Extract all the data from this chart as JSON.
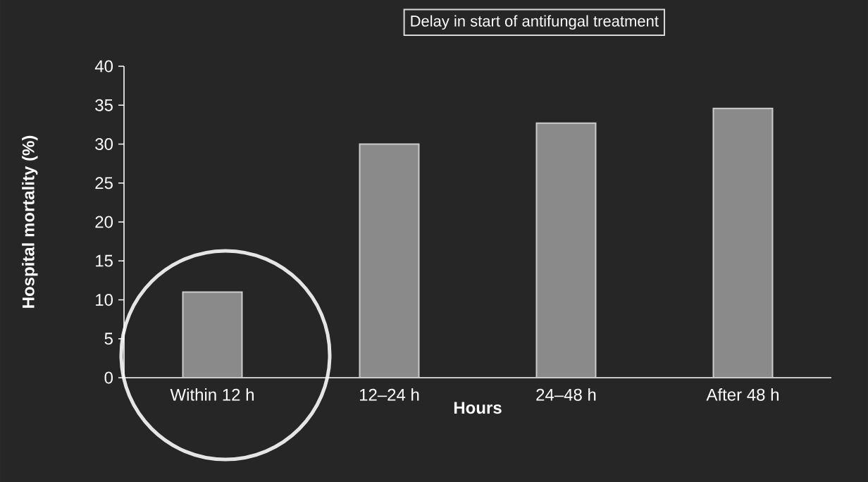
{
  "chart_data": {
    "type": "bar",
    "title": "Delay in start of antifungal treatment",
    "xlabel": "Hours",
    "ylabel": "Hospital mortality (%)",
    "categories": [
      "Within 12 h",
      "12–24 h",
      "24–48 h",
      "After 48 h"
    ],
    "values": [
      11,
      30,
      32.7,
      34.6
    ],
    "color": "#8a8a8a",
    "ylim": [
      0,
      40
    ],
    "yticks": [
      0,
      5,
      10,
      15,
      20,
      25,
      30,
      35,
      40
    ]
  }
}
